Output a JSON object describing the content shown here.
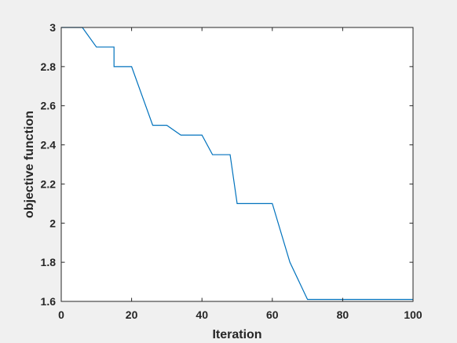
{
  "chart_data": {
    "type": "line",
    "title": "",
    "xlabel": "Iteration",
    "ylabel": "objective function",
    "xlim": [
      0,
      100
    ],
    "ylim": [
      1.6,
      3
    ],
    "grid": false,
    "legend": "none",
    "x_ticks": [
      0,
      20,
      40,
      60,
      80,
      100
    ],
    "x_tick_labels": [
      "0",
      "20",
      "40",
      "60",
      "80",
      "100"
    ],
    "y_ticks": [
      1.6,
      1.8,
      2,
      2.2,
      2.4,
      2.6,
      2.8,
      3
    ],
    "y_tick_labels": [
      "1.6",
      "1.8",
      "2",
      "2.2",
      "2.4",
      "2.6",
      "2.8",
      "3"
    ],
    "colors": {
      "figure_background": "#f0f0f0",
      "plot_background": "#ffffff",
      "axes": "#262626",
      "line": "#0072bd"
    },
    "series": [
      {
        "x": [
          0,
          6,
          10,
          15,
          15,
          20,
          26,
          30,
          34,
          40,
          43,
          48,
          50,
          60,
          65,
          70,
          100
        ],
        "y": [
          3.0,
          3.0,
          2.9,
          2.9,
          2.8,
          2.8,
          2.5,
          2.5,
          2.45,
          2.45,
          2.35,
          2.35,
          2.1,
          2.1,
          1.8,
          1.61,
          1.61
        ]
      }
    ]
  }
}
